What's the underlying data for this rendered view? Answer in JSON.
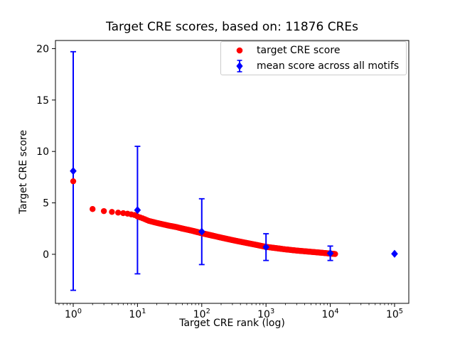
{
  "figure": {
    "title": "Target CRE scores, based on: 11876 CREs",
    "xlabel": "Target CRE rank (log)",
    "ylabel": "Target CRE score"
  },
  "colors": {
    "target_score": "#ff0000",
    "mean_score": "#0000ff",
    "axis": "#000000",
    "legend_border": "#cccccc",
    "background": "#ffffff"
  },
  "chart_data": {
    "type": "scatter",
    "title": "Target CRE scores, based on: 11876 CREs",
    "xlabel": "Target CRE rank (log)",
    "ylabel": "Target CRE score",
    "x_scale": "log10",
    "n_cres": 11876,
    "xlim_log": [
      -0.2765,
      5.2215
    ],
    "ylim": [
      -4.77,
      20.79
    ],
    "x_tick_exponents": [
      0,
      1,
      2,
      3,
      4,
      5
    ],
    "x_tick_labels": [
      "10⁰",
      "10¹",
      "10²",
      "10³",
      "10⁴",
      "10⁵"
    ],
    "y_ticks": [
      0,
      5,
      10,
      15,
      20
    ],
    "grid": false,
    "legend_position": "upper right",
    "legend": [
      {
        "label": "target CRE score",
        "marker": "circle",
        "color": "#ff0000"
      },
      {
        "label": "mean score across all motifs",
        "marker": "diamond-errorbar",
        "color": "#0000ff"
      }
    ],
    "series": [
      {
        "name": "target CRE score",
        "type": "scatter",
        "marker": "circle",
        "color": "#ff0000",
        "note": "~11876 points, one per integer rank 1..11876; anchor points [rank, score] read from plot, interpolated log-linearly",
        "points": [
          [
            1,
            7.1
          ],
          [
            2,
            4.4
          ],
          [
            3,
            4.2
          ],
          [
            4,
            4.12
          ],
          [
            5,
            4.05
          ],
          [
            6,
            4.0
          ],
          [
            7,
            3.95
          ],
          [
            8,
            3.88
          ],
          [
            9,
            3.82
          ],
          [
            10,
            3.68
          ],
          [
            12,
            3.5
          ],
          [
            15,
            3.25
          ],
          [
            20,
            3.05
          ],
          [
            30,
            2.8
          ],
          [
            40,
            2.65
          ],
          [
            50,
            2.5
          ],
          [
            70,
            2.3
          ],
          [
            100,
            2.05
          ],
          [
            150,
            1.8
          ],
          [
            200,
            1.62
          ],
          [
            300,
            1.38
          ],
          [
            400,
            1.22
          ],
          [
            500,
            1.1
          ],
          [
            700,
            0.92
          ],
          [
            1000,
            0.72
          ],
          [
            1500,
            0.58
          ],
          [
            2000,
            0.48
          ],
          [
            3000,
            0.36
          ],
          [
            5000,
            0.24
          ],
          [
            7000,
            0.16
          ],
          [
            10000,
            0.07
          ],
          [
            11876,
            0.03
          ]
        ]
      },
      {
        "name": "mean score across all motifs",
        "type": "errorbar",
        "marker": "diamond",
        "color": "#0000ff",
        "points": [
          {
            "x": 1,
            "y": 8.1,
            "err": 11.6
          },
          {
            "x": 10,
            "y": 4.3,
            "err": 6.2
          },
          {
            "x": 100,
            "y": 2.2,
            "err": 3.2
          },
          {
            "x": 1000,
            "y": 0.7,
            "err": 1.3
          },
          {
            "x": 10000,
            "y": 0.1,
            "err": 0.7
          },
          {
            "x": 100000,
            "y": 0.05,
            "err": 0
          }
        ]
      }
    ]
  }
}
